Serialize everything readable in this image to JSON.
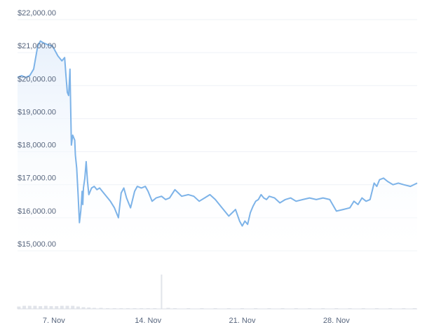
{
  "chart_data": {
    "type": "area",
    "y_axis": {
      "ticks": [
        "$22,000.00",
        "$21,000.00",
        "$20,000.00",
        "$19,000.00",
        "$18,000.00",
        "$17,000.00",
        "$16,000.00",
        "$15,000.00"
      ],
      "tick_values": [
        22000,
        21000,
        20000,
        19000,
        18000,
        17000,
        16000,
        15000
      ],
      "ylim": [
        15000,
        22000
      ]
    },
    "x_axis": {
      "ticks": [
        "7. Nov",
        "14. Nov",
        "21. Nov",
        "28. Nov"
      ],
      "tick_values": [
        7,
        14,
        21,
        28
      ],
      "xlim": [
        4.3,
        34.0
      ]
    },
    "series": [
      {
        "x": [
          4.3,
          4.6,
          4.9,
          5.2,
          5.5,
          5.8,
          6.0,
          6.2,
          6.5,
          6.9,
          7.3,
          7.6,
          7.8,
          7.9,
          8.0,
          8.1,
          8.2,
          8.3,
          8.4,
          8.5,
          8.55,
          8.6,
          8.7,
          8.8,
          8.9,
          9.0,
          9.05,
          9.1,
          9.15,
          9.2,
          9.3,
          9.4,
          9.5,
          9.6,
          9.8,
          10.0,
          10.2,
          10.4,
          10.6,
          10.9,
          11.2,
          11.5,
          11.8,
          12.0,
          12.2,
          12.4,
          12.7,
          13.0,
          13.2,
          13.5,
          13.8,
          14.0,
          14.3,
          14.6,
          15.0,
          15.3,
          15.6,
          16.0,
          16.5,
          17.0,
          17.4,
          17.8,
          18.2,
          18.6,
          19.0,
          19.5,
          20.0,
          20.5,
          20.8,
          21.0,
          21.2,
          21.4,
          21.6,
          21.8,
          22.0,
          22.2,
          22.4,
          22.6,
          22.8,
          23.0,
          23.4,
          23.8,
          24.2,
          24.6,
          25.0,
          25.5,
          26.0,
          26.5,
          27.0,
          27.5,
          28.0,
          28.5,
          29.0,
          29.3,
          29.6,
          29.9,
          30.2,
          30.5,
          30.8,
          31.0,
          31.2,
          31.5,
          31.8,
          32.2,
          32.6,
          33.0,
          33.5,
          34.0
        ],
        "values": [
          20250,
          20300,
          20250,
          20300,
          20500,
          21200,
          21350,
          21300,
          21250,
          21200,
          20900,
          20750,
          20850,
          20300,
          19800,
          19700,
          20500,
          18200,
          18500,
          18400,
          18350,
          17900,
          17500,
          16700,
          15850,
          16200,
          16500,
          16800,
          16400,
          16900,
          17200,
          17700,
          17100,
          16700,
          16900,
          16950,
          16850,
          16900,
          16800,
          16650,
          16500,
          16300,
          16000,
          16750,
          16900,
          16600,
          16300,
          16800,
          16950,
          16900,
          16950,
          16800,
          16500,
          16600,
          16650,
          16550,
          16600,
          16850,
          16650,
          16700,
          16650,
          16500,
          16600,
          16700,
          16550,
          16300,
          16050,
          16250,
          15900,
          15750,
          15900,
          15800,
          16150,
          16350,
          16500,
          16550,
          16700,
          16600,
          16550,
          16650,
          16600,
          16450,
          16550,
          16600,
          16500,
          16550,
          16600,
          16550,
          16600,
          16550,
          16200,
          16250,
          16300,
          16500,
          16400,
          16600,
          16500,
          16550,
          17050,
          16950,
          17150,
          17200,
          17100,
          17000,
          17050,
          17000,
          16950,
          17050
        ]
      }
    ],
    "volume": {
      "x": [
        4.4,
        4.8,
        5.2,
        5.6,
        6.0,
        6.4,
        6.8,
        7.2,
        7.6,
        8.0,
        8.4,
        8.8,
        9.2,
        9.6,
        10.0,
        10.5,
        11.0,
        11.5,
        12.0,
        12.5,
        13.0,
        13.5,
        14.0,
        14.5,
        15.0,
        15.5,
        16.0,
        17.0,
        18.0,
        19.0,
        20.0,
        21.0,
        22.0,
        23.0,
        24.0,
        25.0,
        26.0,
        27.0,
        28.0,
        29.0,
        30.0,
        31.0,
        32.0,
        33.0,
        33.8
      ],
      "values": [
        0.07,
        0.09,
        0.09,
        0.09,
        0.08,
        0.09,
        0.08,
        0.08,
        0.09,
        0.09,
        0.09,
        0.07,
        0.05,
        0.04,
        0.03,
        0.03,
        0.02,
        0.02,
        0.02,
        0.02,
        0.02,
        0.02,
        0.02,
        0.02,
        1.0,
        0.03,
        0.02,
        0.02,
        0.02,
        0.02,
        0.02,
        0.02,
        0.02,
        0.02,
        0.02,
        0.02,
        0.02,
        0.02,
        0.02,
        0.02,
        0.02,
        0.02,
        0.02,
        0.02,
        0.02
      ]
    },
    "grid": "horizontal",
    "colors": {
      "line": "#7db3e8",
      "area_top": "#e8f1fc",
      "area_bottom": "#ffffff",
      "grid": "#eef1f6",
      "volume": "#e1e4ea",
      "labels": "#58667e"
    }
  }
}
